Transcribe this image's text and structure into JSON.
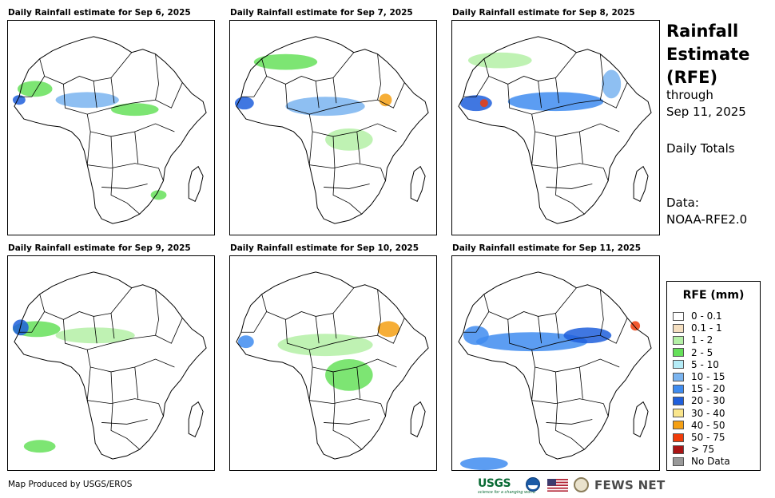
{
  "panels": [
    {
      "title": "Daily Rainfall estimate for Sep 6, 2025"
    },
    {
      "title": "Daily Rainfall estimate for Sep 7, 2025"
    },
    {
      "title": "Daily Rainfall estimate for Sep 8, 2025"
    },
    {
      "title": "Daily Rainfall estimate for Sep 9, 2025"
    },
    {
      "title": "Daily Rainfall estimate for Sep 10, 2025"
    },
    {
      "title": "Daily Rainfall estimate for Sep 11, 2025"
    }
  ],
  "sidebar": {
    "title_line1": "Rainfall",
    "title_line2": "Estimate",
    "title_line3": "(RFE)",
    "through_label": "through",
    "through_date": "Sep 11, 2025",
    "totals_label": "Daily Totals",
    "data_label": "Data:",
    "data_source": "NOAA-RFE2.0"
  },
  "legend": {
    "title": "RFE (mm)",
    "items": [
      {
        "label": "0 - 0.1",
        "color": "#ffffff"
      },
      {
        "label": "0.1 - 1",
        "color": "#f5dfc0"
      },
      {
        "label": "1 - 2",
        "color": "#b4f0a6"
      },
      {
        "label": "2 - 5",
        "color": "#66e05a"
      },
      {
        "label": "5 - 10",
        "color": "#b5ecf7"
      },
      {
        "label": "10 - 15",
        "color": "#7ab4f0"
      },
      {
        "label": "15 - 20",
        "color": "#3f8cf0"
      },
      {
        "label": "20 - 30",
        "color": "#1f5fdc"
      },
      {
        "label": "30 - 40",
        "color": "#fae68c"
      },
      {
        "label": "40 - 50",
        "color": "#f5a014"
      },
      {
        "label": "50 - 75",
        "color": "#f03c0a"
      },
      {
        "label": "> 75",
        "color": "#aa1414"
      },
      {
        "label": "No Data",
        "color": "#999999"
      }
    ]
  },
  "footer": {
    "credit": "Map Produced by USGS/EROS",
    "usgs": "USGS",
    "usgs_tagline": "science for a changing world",
    "fews": "FEWS NET"
  }
}
